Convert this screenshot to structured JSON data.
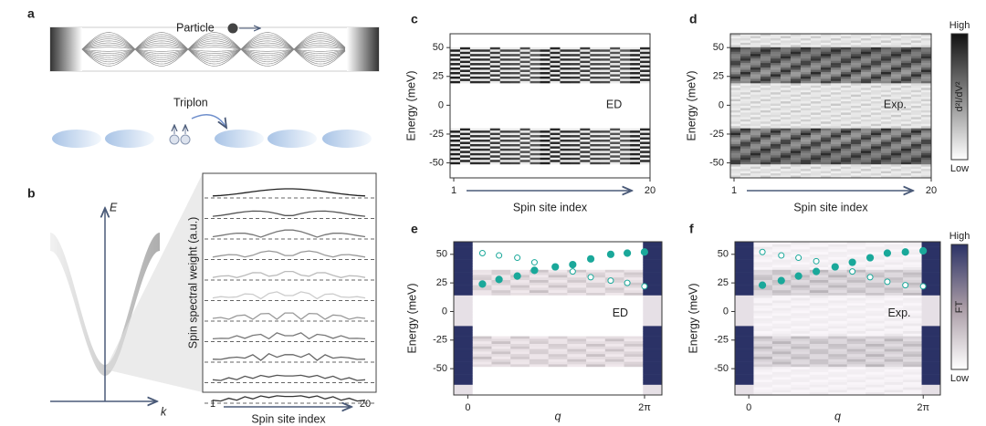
{
  "panel_a": {
    "label": "a",
    "particle": "Particle",
    "triplon": "Triplon"
  },
  "panel_b": {
    "label": "b",
    "y_axis": "E",
    "x_axis": "k",
    "inset_ylabel": "Spin spectral weight (a.u.)",
    "inset_xlabel": "Spin site index",
    "inset_xticks": [
      1,
      20
    ]
  },
  "chart_data": [
    {
      "type": "heatmap",
      "label": "c",
      "ylabel": "Energy (meV)",
      "xlabel": "Spin site index",
      "annotation": "ED",
      "xlim": [
        1,
        20
      ],
      "xticks": [
        1,
        20
      ],
      "ylim": [
        -63,
        62
      ],
      "yticks": [
        -50,
        -25,
        0,
        25,
        50
      ],
      "style": "ed"
    },
    {
      "type": "heatmap",
      "label": "d",
      "ylabel": "Energy (meV)",
      "xlabel": "Spin site index",
      "annotation": "Exp.",
      "xlim": [
        1,
        20
      ],
      "xticks": [
        1,
        20
      ],
      "ylim": [
        -63,
        62
      ],
      "yticks": [
        -50,
        -25,
        0,
        25,
        50
      ],
      "style": "exp",
      "colorbar": {
        "label": "d²I/dV²",
        "high": "High",
        "low": "Low"
      }
    },
    {
      "type": "scatter",
      "label": "e",
      "ylabel": "Energy (meV)",
      "xlabel": "q",
      "annotation": "ED",
      "xlim": [
        -0.5,
        6.9
      ],
      "xticks": [
        0,
        {
          "value": 6.283,
          "label": "2π"
        }
      ],
      "ylim": [
        -73,
        61
      ],
      "yticks": [
        -50,
        -25,
        0,
        25,
        50
      ],
      "style": "ed",
      "x": [
        0.52,
        1.11,
        1.76,
        2.37,
        3.11,
        3.73,
        4.37,
        5.08,
        5.67,
        6.28
      ],
      "series": [
        {
          "color": "#1aa89a",
          "marker": "filled",
          "values": [
            24,
            28,
            31,
            36,
            39,
            41,
            46,
            50,
            51,
            52
          ]
        },
        {
          "color": "#1aa89a",
          "marker": "open",
          "values": [
            51,
            49,
            47,
            43,
            null,
            35,
            30,
            27,
            25,
            22
          ]
        }
      ]
    },
    {
      "type": "scatter",
      "label": "f",
      "ylabel": "Energy (meV)",
      "xlabel": "q",
      "annotation": "Exp.",
      "xlim": [
        -0.5,
        6.9
      ],
      "xticks": [
        0,
        {
          "value": 6.283,
          "label": "2π"
        }
      ],
      "ylim": [
        -73,
        61
      ],
      "yticks": [
        -50,
        -25,
        0,
        25,
        50
      ],
      "style": "exp",
      "x": [
        0.49,
        1.17,
        1.79,
        2.43,
        3.11,
        3.73,
        4.37,
        4.99,
        5.64,
        6.28
      ],
      "series": [
        {
          "color": "#1aa89a",
          "marker": "filled",
          "values": [
            23,
            27,
            31,
            35,
            39,
            43,
            47,
            51,
            52,
            53
          ]
        },
        {
          "color": "#1aa89a",
          "marker": "open",
          "values": [
            52,
            49,
            47,
            44,
            null,
            35,
            30,
            26,
            23,
            22
          ]
        }
      ],
      "colorbar": {
        "label": "FT",
        "high": "High",
        "low": "Low"
      }
    }
  ]
}
